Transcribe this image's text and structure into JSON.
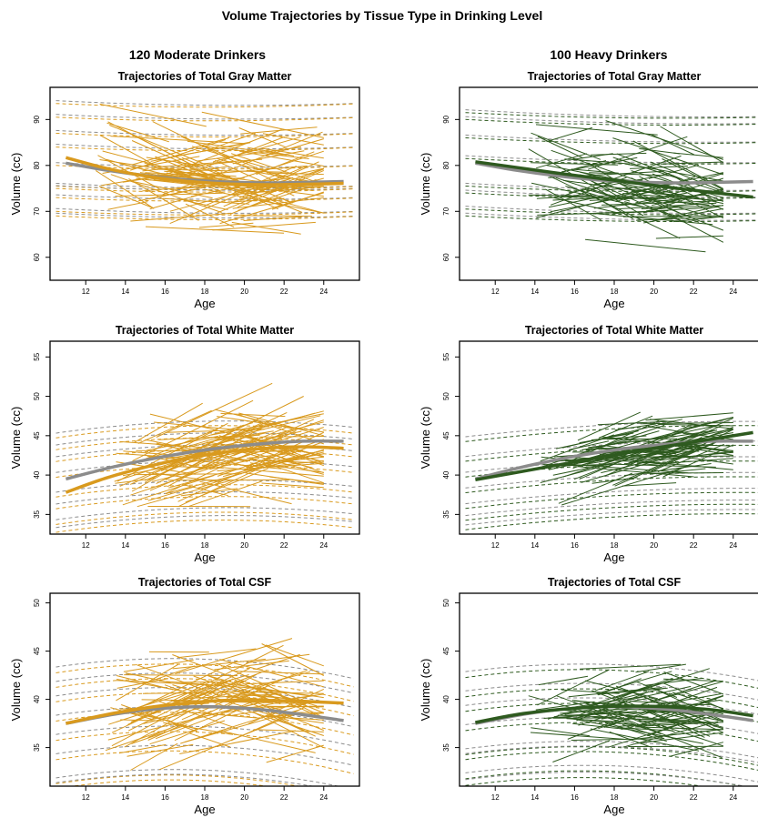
{
  "figure": {
    "title": "Volume Trajectories by Tissue Type in Drinking Level",
    "columns": [
      "120 Moderate Drinkers",
      "100 Heavy Drinkers"
    ]
  },
  "colors": {
    "moderate": "#D99A1E",
    "heavy": "#2E5A1F",
    "reference": "#8C8C8C",
    "frame": "#000000"
  },
  "chart_data": [
    {
      "type": "line",
      "group": "moderate",
      "panel_row": 0,
      "title": "Trajectories of Total Gray Matter",
      "xlabel": "Age",
      "ylabel": "Volume (cc)",
      "xlim": [
        10.2,
        25.8
      ],
      "ylim": [
        55,
        97
      ],
      "xticks": [
        12,
        14,
        16,
        18,
        20,
        22,
        24
      ],
      "yticks": [
        60,
        70,
        80,
        90
      ],
      "reference_mean": {
        "x": [
          11,
          13,
          15,
          17,
          19,
          21,
          23,
          25
        ],
        "y": [
          80.5,
          79.0,
          77.8,
          76.9,
          76.4,
          76.2,
          76.3,
          76.5
        ]
      },
      "group_mean": {
        "x": [
          11,
          13,
          15,
          17,
          19,
          21,
          23,
          25
        ],
        "y": [
          81.7,
          79.4,
          77.7,
          76.6,
          76.0,
          75.8,
          75.9,
          76.1
        ]
      },
      "bands": {
        "y0": [
          94.0,
          91.0,
          87.5,
          84.5,
          80.5,
          76.0,
          75.5,
          73.5,
          70.5,
          69.5
        ],
        "slope": -0.35,
        "curvature": 0.012
      },
      "individuals": {
        "count": 120,
        "x_range": [
          12.5,
          24.0
        ],
        "y_range": [
          62.0,
          95.5
        ],
        "seed": 11
      }
    },
    {
      "type": "line",
      "group": "heavy",
      "panel_row": 0,
      "title": "Trajectories of Total Gray Matter",
      "xlabel": "Age",
      "ylabel": "Volume (cc)",
      "xlim": [
        10.2,
        25.8
      ],
      "ylim": [
        55,
        97
      ],
      "xticks": [
        12,
        14,
        16,
        18,
        20,
        22,
        24
      ],
      "yticks": [
        60,
        70,
        80,
        90
      ],
      "reference_mean": {
        "x": [
          11,
          13,
          15,
          17,
          19,
          21,
          23,
          25
        ],
        "y": [
          80.5,
          79.0,
          77.8,
          76.9,
          76.4,
          76.2,
          76.3,
          76.5
        ]
      },
      "group_mean": {
        "x": [
          11,
          13,
          15,
          17,
          19,
          21,
          23,
          25
        ],
        "y": [
          80.8,
          79.6,
          78.4,
          77.3,
          76.2,
          75.1,
          74.1,
          73.1
        ]
      },
      "bands": {
        "y0": [
          92.0,
          90.5,
          86.5,
          82.0,
          76.0,
          74.5,
          71.0,
          69.5
        ],
        "slope": -0.4,
        "curvature": 0.01
      },
      "individuals": {
        "count": 100,
        "x_range": [
          13.5,
          23.5
        ],
        "y_range": [
          56.0,
          91.5
        ],
        "seed": 23
      }
    },
    {
      "type": "line",
      "group": "moderate",
      "panel_row": 1,
      "title": "Trajectories of Total White Matter",
      "xlabel": "Age",
      "ylabel": "Volume (cc)",
      "xlim": [
        10.2,
        25.8
      ],
      "ylim": [
        32.5,
        57
      ],
      "xticks": [
        12,
        14,
        16,
        18,
        20,
        22,
        24
      ],
      "yticks": [
        35,
        40,
        45,
        50,
        55
      ],
      "reference_mean": {
        "x": [
          11,
          13,
          15,
          17,
          19,
          21,
          23,
          25
        ],
        "y": [
          39.5,
          40.8,
          41.9,
          42.8,
          43.5,
          44.0,
          44.3,
          44.3
        ]
      },
      "group_mean": {
        "x": [
          11,
          13,
          15,
          17,
          19,
          21,
          23,
          25
        ],
        "y": [
          37.8,
          39.6,
          41.0,
          42.1,
          42.9,
          43.4,
          43.6,
          43.4
        ]
      },
      "bands": {
        "y0": [
          45.5,
          44.0,
          42.5,
          40.5,
          38.0,
          36.5,
          34.5,
          33.5
        ],
        "slope": 0.55,
        "curvature": -0.02
      },
      "individuals": {
        "count": 120,
        "x_range": [
          13.0,
          24.0
        ],
        "y_range": [
          36.0,
          53.5
        ],
        "seed": 37
      }
    },
    {
      "type": "line",
      "group": "heavy",
      "panel_row": 1,
      "title": "Trajectories of Total White Matter",
      "xlabel": "Age",
      "ylabel": "Volume (cc)",
      "xlim": [
        10.2,
        25.8
      ],
      "ylim": [
        32.5,
        57
      ],
      "xticks": [
        12,
        14,
        16,
        18,
        20,
        22,
        24
      ],
      "yticks": [
        35,
        40,
        45,
        50,
        55
      ],
      "reference_mean": {
        "x": [
          11,
          13,
          15,
          17,
          19,
          21,
          23,
          25
        ],
        "y": [
          39.5,
          40.8,
          41.9,
          42.8,
          43.5,
          44.0,
          44.3,
          44.3
        ]
      },
      "group_mean": {
        "x": [
          11,
          13,
          15,
          17,
          19,
          21,
          23,
          25
        ],
        "y": [
          39.4,
          40.3,
          41.2,
          42.1,
          43.0,
          43.8,
          44.6,
          45.4
        ]
      },
      "bands": {
        "y0": [
          45.0,
          42.5,
          40.5,
          38.5,
          36.5,
          35.0,
          33.8
        ],
        "slope": 0.45,
        "curvature": -0.01
      },
      "individuals": {
        "count": 100,
        "x_range": [
          14.0,
          24.0
        ],
        "y_range": [
          35.5,
          49.5
        ],
        "seed": 51
      }
    },
    {
      "type": "line",
      "group": "moderate",
      "panel_row": 2,
      "title": "Trajectories of Total CSF",
      "xlabel": "Age",
      "ylabel": "Volume (cc)",
      "xlim": [
        10.2,
        25.8
      ],
      "ylim": [
        31,
        51
      ],
      "xticks": [
        12,
        14,
        16,
        18,
        20,
        22,
        24
      ],
      "yticks": [
        35,
        40,
        45,
        50
      ],
      "reference_mean": {
        "x": [
          11,
          13,
          15,
          17,
          19,
          21,
          23,
          25
        ],
        "y": [
          37.5,
          38.3,
          38.9,
          39.2,
          39.2,
          38.9,
          38.4,
          37.8
        ]
      },
      "group_mean": {
        "x": [
          11,
          13,
          15,
          17,
          19,
          21,
          23,
          25
        ],
        "y": [
          37.5,
          38.4,
          39.1,
          39.6,
          39.9,
          39.9,
          39.8,
          39.6
        ]
      },
      "bands": {
        "y0": [
          43.5,
          42.0,
          40.5,
          38.5,
          36.5,
          34.5,
          32.0,
          31.5
        ],
        "slope": 0.45,
        "curvature": -0.025
      },
      "individuals": {
        "count": 120,
        "x_range": [
          13.0,
          24.0
        ],
        "y_range": [
          32.0,
          49.0
        ],
        "seed": 67
      }
    },
    {
      "type": "line",
      "group": "heavy",
      "panel_row": 2,
      "title": "Trajectories of Total CSF",
      "xlabel": "Age",
      "ylabel": "Volume (cc)",
      "xlim": [
        10.2,
        25.8
      ],
      "ylim": [
        31,
        51
      ],
      "xticks": [
        12,
        14,
        16,
        18,
        20,
        22,
        24
      ],
      "yticks": [
        35,
        40,
        45,
        50
      ],
      "reference_mean": {
        "x": [
          11,
          13,
          15,
          17,
          19,
          21,
          23,
          25
        ],
        "y": [
          37.5,
          38.3,
          38.9,
          39.2,
          39.2,
          38.9,
          38.4,
          37.8
        ]
      },
      "group_mean": {
        "x": [
          11,
          13,
          15,
          17,
          19,
          21,
          23,
          25
        ],
        "y": [
          37.6,
          38.4,
          38.9,
          39.2,
          39.3,
          39.2,
          38.9,
          38.3
        ]
      },
      "bands": {
        "y0": [
          43.0,
          41.0,
          39.5,
          37.5,
          35.0,
          34.5,
          32.5,
          31.8
        ],
        "slope": 0.4,
        "curvature": -0.022
      },
      "individuals": {
        "count": 100,
        "x_range": [
          13.5,
          23.5
        ],
        "y_range": [
          33.5,
          48.0
        ],
        "seed": 79
      }
    }
  ]
}
